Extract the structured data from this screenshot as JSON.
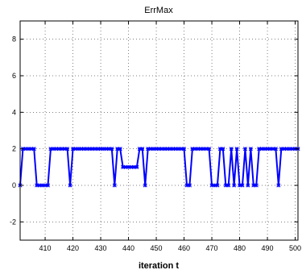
{
  "chart_data": {
    "type": "line",
    "title": "ErrMax",
    "xlabel": "iteration t",
    "ylabel": "",
    "xlim": [
      401,
      501
    ],
    "ylim": [
      -3,
      9
    ],
    "xticks": [
      410,
      420,
      430,
      440,
      450,
      460,
      470,
      480,
      490,
      500
    ],
    "yticks": [
      -2,
      0,
      2,
      4,
      6,
      8
    ],
    "grid": true,
    "color": "#0000ff",
    "series": [
      {
        "values": [
          [
            401,
            0
          ],
          [
            402,
            2
          ],
          [
            403,
            2
          ],
          [
            404,
            2
          ],
          [
            405,
            2
          ],
          [
            406,
            2
          ],
          [
            407,
            0
          ],
          [
            408,
            0
          ],
          [
            409,
            0
          ],
          [
            410,
            0
          ],
          [
            411,
            0
          ],
          [
            412,
            2
          ],
          [
            413,
            2
          ],
          [
            414,
            2
          ],
          [
            415,
            2
          ],
          [
            416,
            2
          ],
          [
            417,
            2
          ],
          [
            418,
            2
          ],
          [
            419,
            0
          ],
          [
            420,
            2
          ],
          [
            421,
            2
          ],
          [
            422,
            2
          ],
          [
            423,
            2
          ],
          [
            424,
            2
          ],
          [
            425,
            2
          ],
          [
            426,
            2
          ],
          [
            427,
            2
          ],
          [
            428,
            2
          ],
          [
            429,
            2
          ],
          [
            430,
            2
          ],
          [
            431,
            2
          ],
          [
            432,
            2
          ],
          [
            433,
            2
          ],
          [
            434,
            2
          ],
          [
            435,
            0
          ],
          [
            436,
            2
          ],
          [
            437,
            2
          ],
          [
            438,
            1
          ],
          [
            439,
            1
          ],
          [
            440,
            1
          ],
          [
            441,
            1
          ],
          [
            442,
            1
          ],
          [
            443,
            1
          ],
          [
            444,
            2
          ],
          [
            445,
            2
          ],
          [
            446,
            0
          ],
          [
            447,
            2
          ],
          [
            448,
            2
          ],
          [
            449,
            2
          ],
          [
            450,
            2
          ],
          [
            451,
            2
          ],
          [
            452,
            2
          ],
          [
            453,
            2
          ],
          [
            454,
            2
          ],
          [
            455,
            2
          ],
          [
            456,
            2
          ],
          [
            457,
            2
          ],
          [
            458,
            2
          ],
          [
            459,
            2
          ],
          [
            460,
            2
          ],
          [
            461,
            0
          ],
          [
            462,
            0
          ],
          [
            463,
            2
          ],
          [
            464,
            2
          ],
          [
            465,
            2
          ],
          [
            466,
            2
          ],
          [
            467,
            2
          ],
          [
            468,
            2
          ],
          [
            469,
            2
          ],
          [
            470,
            0
          ],
          [
            471,
            0
          ],
          [
            472,
            0
          ],
          [
            473,
            2
          ],
          [
            474,
            2
          ],
          [
            475,
            0
          ],
          [
            476,
            0
          ],
          [
            477,
            2
          ],
          [
            478,
            0
          ],
          [
            479,
            2
          ],
          [
            480,
            0
          ],
          [
            481,
            0
          ],
          [
            482,
            2
          ],
          [
            483,
            0
          ],
          [
            484,
            2
          ],
          [
            485,
            0
          ],
          [
            486,
            0
          ],
          [
            487,
            2
          ],
          [
            488,
            2
          ],
          [
            489,
            2
          ],
          [
            490,
            2
          ],
          [
            491,
            2
          ],
          [
            492,
            2
          ],
          [
            493,
            2
          ],
          [
            494,
            0
          ],
          [
            495,
            2
          ],
          [
            496,
            2
          ],
          [
            497,
            2
          ],
          [
            498,
            2
          ],
          [
            499,
            2
          ],
          [
            500,
            2
          ],
          [
            501,
            2
          ]
        ]
      }
    ]
  }
}
